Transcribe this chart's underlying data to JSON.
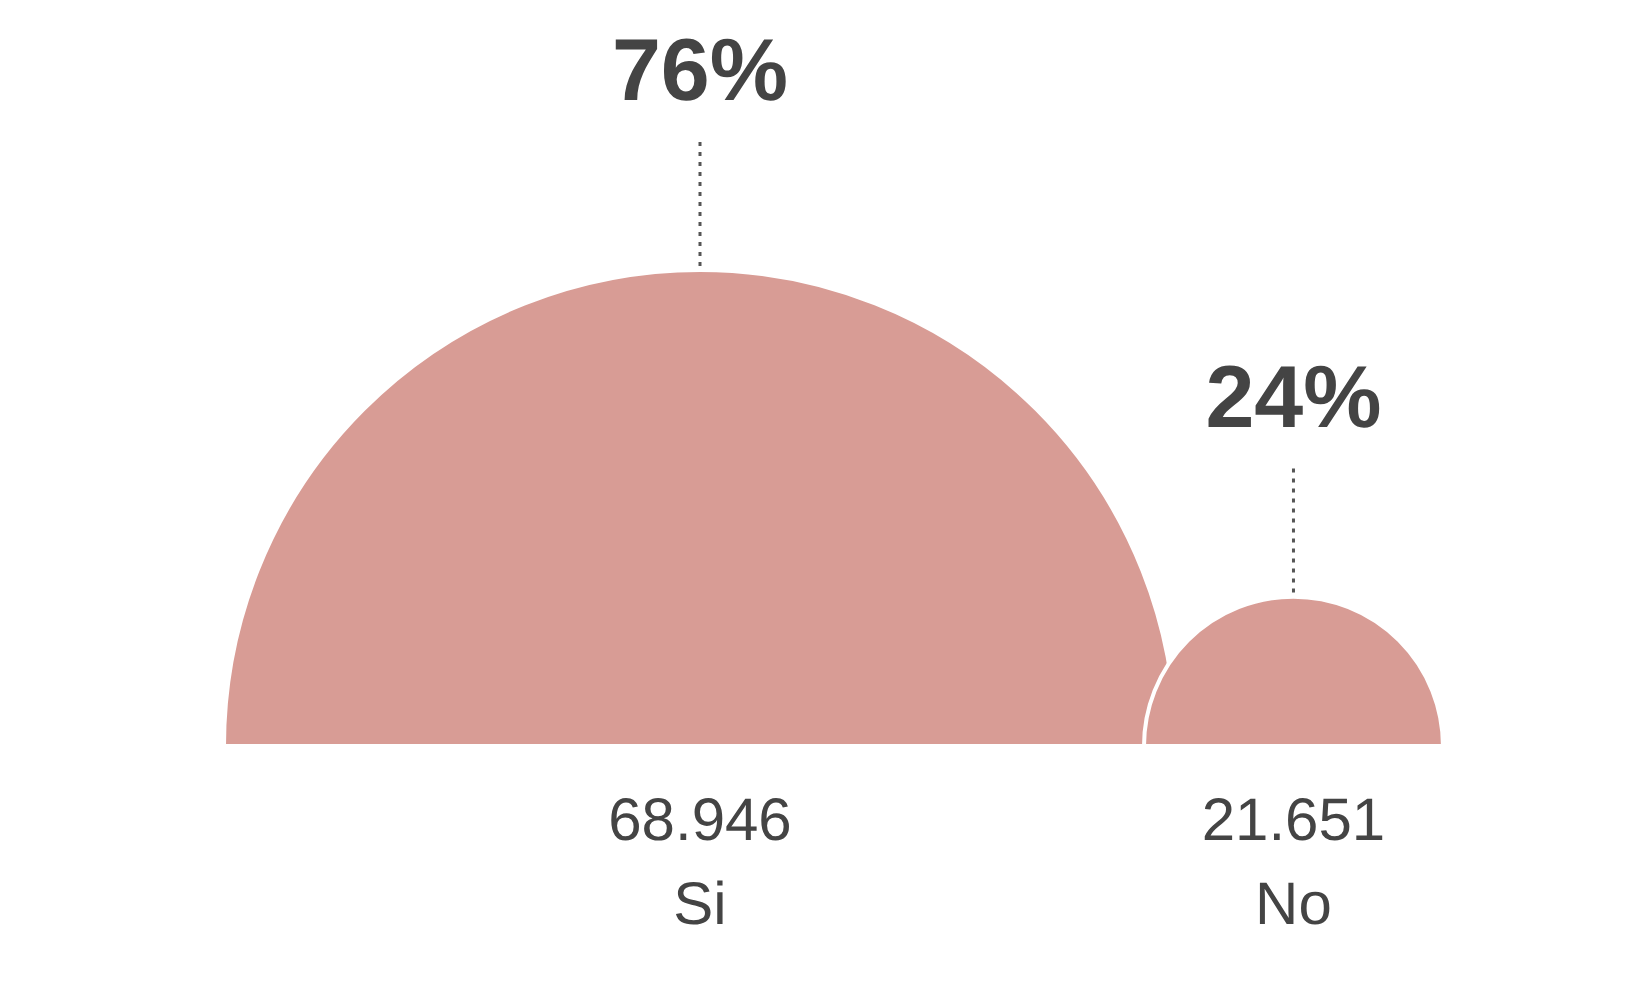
{
  "chart_data": {
    "type": "other",
    "categories": [
      "Si",
      "No"
    ],
    "values": [
      68946,
      21651
    ],
    "value_labels": [
      "68.946",
      "21.651"
    ],
    "color": "#d89c95",
    "annotations": [
      {
        "text": "76%",
        "x": "Si"
      },
      {
        "text": "24%",
        "x": "No"
      }
    ]
  }
}
